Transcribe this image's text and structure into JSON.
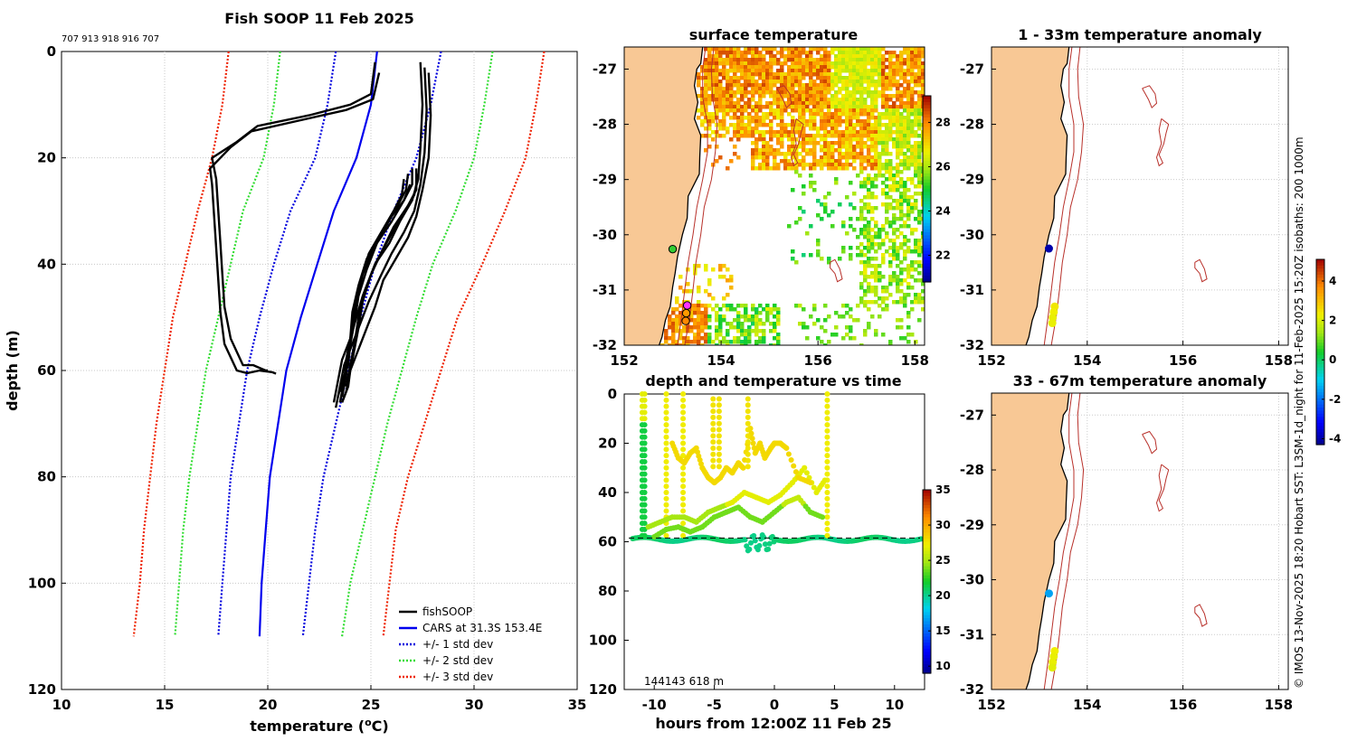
{
  "chart_data": [
    {
      "type": "line",
      "title": "Fish SOOP 11 Feb 2025",
      "top_note": "707 913 918 916 707",
      "xlabel_main": "temperature (",
      "xlabel_sup": "o",
      "xlabel_tail": "C)",
      "ylabel": "depth (m)",
      "xlim": [
        10,
        35
      ],
      "ylim": [
        120,
        0
      ],
      "xticks": [
        "10",
        "15",
        "20",
        "25",
        "30",
        "35"
      ],
      "yticks": [
        "0",
        "20",
        "40",
        "60",
        "80",
        "100",
        "120"
      ],
      "legend": [
        "fishSOOP",
        "CARS at 31.3S 153.4E",
        "+/- 1 std dev",
        "+/- 2 std dev",
        "+/- 3 std dev"
      ],
      "colors": {
        "fishsoop": "#000000",
        "cars": "#0000ee",
        "std1": "#0000dd",
        "std2": "#33dd33",
        "std3": "#ee2200"
      },
      "depth": [
        0,
        10,
        20,
        30,
        40,
        50,
        60,
        70,
        80,
        90,
        100,
        110
      ],
      "cars_temp": [
        25.3,
        25.0,
        24.3,
        23.2,
        22.4,
        21.6,
        20.9,
        20.5,
        20.1,
        19.9,
        19.7,
        19.6
      ],
      "std1_lo": [
        23.3,
        22.9,
        22.3,
        21.1,
        20.3,
        19.6,
        19.0,
        18.6,
        18.2,
        18.0,
        17.8,
        17.6
      ],
      "std1_hi": [
        28.4,
        27.9,
        27.2,
        26.1,
        25.2,
        24.5,
        23.9,
        23.3,
        22.7,
        22.3,
        22.0,
        21.7
      ],
      "std2_lo": [
        20.6,
        20.3,
        19.8,
        18.8,
        18.2,
        17.6,
        17.0,
        16.6,
        16.2,
        15.9,
        15.7,
        15.5
      ],
      "std2_hi": [
        30.9,
        30.5,
        30.0,
        29.1,
        28.0,
        27.2,
        26.5,
        25.8,
        25.2,
        24.6,
        24.0,
        23.6
      ],
      "std3_lo": [
        18.1,
        17.8,
        17.3,
        16.6,
        16.0,
        15.4,
        15.0,
        14.6,
        14.3,
        14.0,
        13.8,
        13.5
      ],
      "std3_hi": [
        33.4,
        33.0,
        32.5,
        31.5,
        30.4,
        29.2,
        28.4,
        27.6,
        26.8,
        26.2,
        25.9,
        25.6
      ],
      "profiles": [
        {
          "temp": [
            25.2,
            25.0,
            24.0,
            22.0,
            19.5,
            18.5,
            17.3,
            17.5,
            17.6,
            17.7,
            17.8,
            17.9,
            18.2,
            18.8,
            19.3,
            19.6,
            19.9,
            20.0
          ],
          "depth": [
            2,
            8,
            10,
            12,
            14,
            17,
            20,
            24,
            30,
            36,
            42,
            48,
            54,
            59,
            59,
            59.5,
            60,
            60
          ]
        },
        {
          "temp": [
            25.4,
            25.1,
            23.8,
            21.5,
            19.2,
            18.2,
            17.2,
            17.3,
            17.4,
            17.5,
            17.6,
            17.7,
            17.9,
            18.5,
            19.0,
            19.6,
            20.2,
            20.4
          ],
          "depth": [
            4,
            9,
            11,
            13,
            15,
            18,
            22,
            25,
            31,
            37,
            43,
            49,
            55,
            60,
            60.5,
            60,
            60.3,
            60.6
          ]
        },
        {
          "temp": [
            27.4,
            27.5,
            27.4,
            27.3,
            27.0,
            26.4,
            25.9,
            25.2,
            24.6,
            24.3,
            24.0,
            23.6,
            23.4,
            23.2
          ],
          "depth": [
            2,
            10,
            18,
            24,
            28,
            32,
            36,
            40,
            46,
            50,
            54,
            58,
            62,
            66
          ]
        },
        {
          "temp": [
            27.6,
            27.7,
            27.6,
            27.4,
            27.1,
            26.6,
            26.0,
            25.5,
            24.9,
            24.5,
            24.1,
            23.7,
            23.5,
            23.3
          ],
          "depth": [
            3,
            11,
            19,
            25,
            30,
            34,
            38,
            42,
            47,
            51,
            55,
            59,
            63,
            67
          ]
        },
        {
          "temp": [
            27.8,
            27.9,
            27.8,
            27.5,
            27.2,
            26.8,
            26.2,
            25.6,
            25.2,
            24.8,
            24.4,
            24.0,
            23.8,
            23.6
          ],
          "depth": [
            4,
            12,
            20,
            26,
            31,
            35,
            39,
            43,
            48,
            52,
            56,
            60,
            64,
            66
          ]
        },
        {
          "temp": [
            27.2,
            27.2,
            26.8,
            26.1,
            25.6,
            25.0,
            24.6,
            24.4,
            24.2,
            24.0,
            23.9,
            23.6
          ],
          "depth": [
            22,
            26,
            29,
            33,
            37,
            42,
            47,
            52,
            56,
            60,
            63,
            66
          ]
        },
        {
          "temp": [
            27.0,
            27.0,
            26.6,
            26.0,
            25.3,
            24.8,
            24.4,
            24.2,
            24.0,
            23.9,
            23.6,
            23.4
          ],
          "depth": [
            22,
            25,
            28,
            32,
            36,
            41,
            46,
            51,
            55,
            59,
            62,
            65
          ]
        },
        {
          "temp": [
            26.8,
            26.7,
            26.3,
            25.7,
            25.1,
            24.6,
            24.3,
            24.1,
            23.9,
            23.8,
            23.5
          ],
          "depth": [
            23,
            26,
            29,
            33,
            37,
            42,
            47,
            52,
            56,
            60,
            64
          ]
        },
        {
          "temp": [
            26.6,
            26.5,
            26.1,
            25.5,
            24.9,
            24.5,
            24.2,
            24.1,
            23.9,
            23.8,
            23.6
          ],
          "depth": [
            24,
            27,
            30,
            34,
            38,
            43,
            48,
            53,
            57,
            61,
            65
          ]
        },
        {
          "temp": [
            26.9,
            26.6,
            26.0,
            25.4,
            24.8,
            24.4,
            24.1,
            24.0,
            23.8,
            23.7,
            23.5
          ],
          "depth": [
            25,
            28,
            31,
            35,
            39,
            44,
            49,
            54,
            58,
            62,
            66
          ]
        },
        {
          "temp": [
            27.3,
            27.1,
            26.5,
            25.9,
            25.2,
            24.7,
            24.4,
            24.2,
            24.0,
            23.8
          ],
          "depth": [
            23,
            27,
            31,
            35,
            40,
            45,
            50,
            55,
            59,
            63
          ]
        }
      ]
    },
    {
      "type": "heatmap",
      "title": "surface temperature",
      "xlim": [
        152,
        158.2
      ],
      "ylim": [
        -32,
        -26.6
      ],
      "xticks": [
        "152",
        "154",
        "156",
        "158"
      ],
      "yticks": [
        "-27",
        "-28",
        "-29",
        "-30",
        "-31",
        "-32"
      ],
      "colorbar_ticks": [
        "22",
        "24",
        "26",
        "28"
      ],
      "colorbar_range": [
        20.8,
        29.2
      ],
      "markers": [
        {
          "lon": 153.0,
          "lat": -30.26,
          "fill": "#33cc33"
        },
        {
          "lon": 153.3,
          "lat": -31.28,
          "fill": "#ff33ff"
        },
        {
          "lon": 153.28,
          "lat": -31.42,
          "fill": "#ff9900"
        },
        {
          "lon": 153.27,
          "lat": -31.56,
          "fill": "#ff8800"
        }
      ]
    },
    {
      "type": "scatter",
      "title": "1 - 33m temperature anomaly",
      "xlim": [
        152,
        158.2
      ],
      "ylim": [
        -32,
        -26.6
      ],
      "xticks": [
        "152",
        "154",
        "156",
        "158"
      ],
      "yticks": [
        "-27",
        "-28",
        "-29",
        "-30",
        "-31",
        "-32"
      ],
      "points": [
        {
          "lon": 153.2,
          "lat": -30.25,
          "anomaly": -4.0
        },
        {
          "lon": 153.32,
          "lat": -31.3,
          "anomaly": 2.4
        },
        {
          "lon": 153.3,
          "lat": -31.4,
          "anomaly": 2.3
        },
        {
          "lon": 153.28,
          "lat": -31.5,
          "anomaly": 2.2
        },
        {
          "lon": 153.27,
          "lat": -31.6,
          "anomaly": 2.2
        }
      ]
    },
    {
      "type": "scatter",
      "title": "33 - 67m temperature anomaly",
      "xlim": [
        152,
        158.2
      ],
      "ylim": [
        -32,
        -26.6
      ],
      "xticks": [
        "152",
        "154",
        "156",
        "158"
      ],
      "yticks": [
        "-27",
        "-28",
        "-29",
        "-30",
        "-31",
        "-32"
      ],
      "points": [
        {
          "lon": 153.2,
          "lat": -30.25,
          "anomaly": -1.5
        },
        {
          "lon": 153.32,
          "lat": -31.3,
          "anomaly": 2.3
        },
        {
          "lon": 153.3,
          "lat": -31.4,
          "anomaly": 2.2
        },
        {
          "lon": 153.28,
          "lat": -31.5,
          "anomaly": 2.2
        },
        {
          "lon": 153.27,
          "lat": -31.6,
          "anomaly": 2.1
        }
      ],
      "colorbar_ticks": [
        "4",
        "2",
        "0",
        "-2",
        "-4"
      ],
      "colorbar_range": [
        -4.3,
        5.1
      ]
    },
    {
      "type": "scatter",
      "title": "depth and temperature vs time",
      "xlabel": "hours from 12:00Z 11 Feb 25",
      "xlim": [
        -12.5,
        12.5
      ],
      "ylim": [
        120,
        0
      ],
      "xticks": [
        "-10",
        "-5",
        "0",
        "5",
        "10"
      ],
      "yticks": [
        "0",
        "20",
        "40",
        "60",
        "80",
        "100",
        "120"
      ],
      "overlap_label": "144143 618 m",
      "colorbar_ticks": [
        "35",
        "30",
        "25",
        "20",
        "15",
        "10"
      ],
      "colorbar_range": [
        9,
        35
      ],
      "bottom_line_depth": 58.5
    }
  ],
  "side_note": "© IMOS 13-Nov-2025 18:20 Hobart SST: L3SM-1d_night for 11-Feb-2025 15:20Z isobaths: 200  1000m"
}
